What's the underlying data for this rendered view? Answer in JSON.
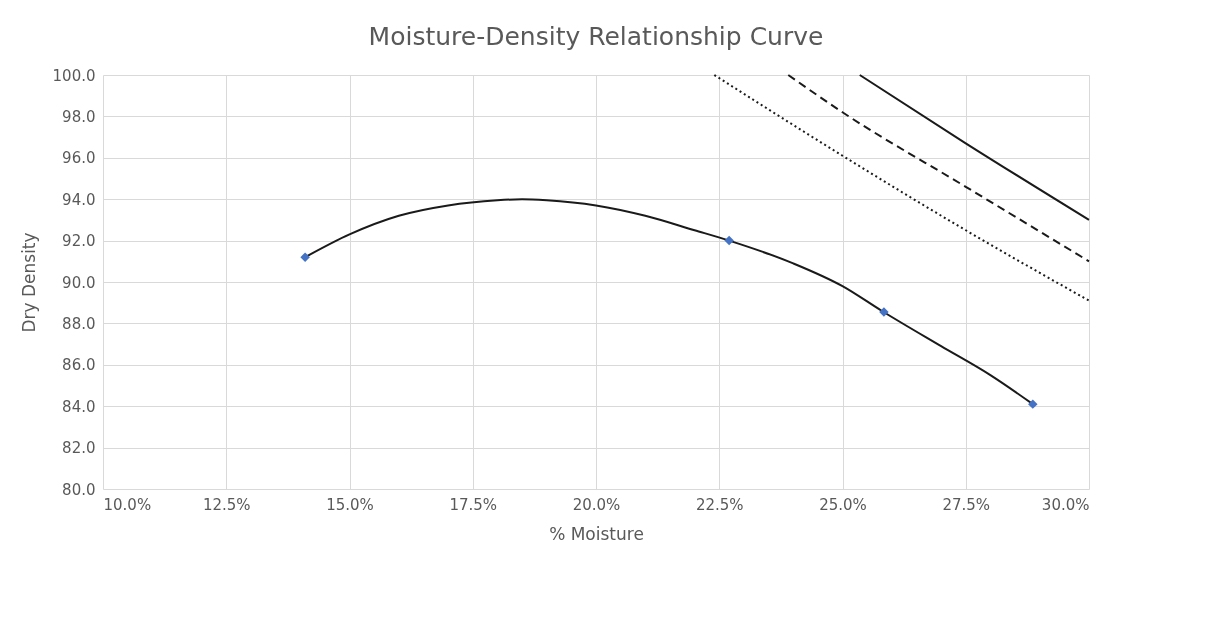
{
  "chart_data": {
    "type": "scatter",
    "title": "Moisture-Density Relationship Curve",
    "xlabel": "% Moisture",
    "ylabel": "Dry Density",
    "xlim": [
      10,
      30
    ],
    "ylim": [
      80,
      100
    ],
    "xticks": [
      {
        "value": 10,
        "label": "10.0%"
      },
      {
        "value": 12.5,
        "label": "12.5%"
      },
      {
        "value": 15,
        "label": "15.0%"
      },
      {
        "value": 17.5,
        "label": "17.5%"
      },
      {
        "value": 20,
        "label": "20.0%"
      },
      {
        "value": 22.5,
        "label": "22.5%"
      },
      {
        "value": 25,
        "label": "25.0%"
      },
      {
        "value": 27.5,
        "label": "27.5%"
      },
      {
        "value": 30,
        "label": "30.0%"
      }
    ],
    "yticks": [
      {
        "value": 80,
        "label": "80.0"
      },
      {
        "value": 82,
        "label": "82.0"
      },
      {
        "value": 84,
        "label": "84.0"
      },
      {
        "value": 86,
        "label": "86.0"
      },
      {
        "value": 88,
        "label": "88.0"
      },
      {
        "value": 90,
        "label": "90.0"
      },
      {
        "value": 92,
        "label": "92.0"
      },
      {
        "value": 94,
        "label": "94.0"
      },
      {
        "value": 96,
        "label": "96.0"
      },
      {
        "value": 98,
        "label": "98.0"
      },
      {
        "value": 100,
        "label": "100.0"
      }
    ],
    "grid": true,
    "series": [
      {
        "type": "line",
        "color": "#1a1a1a",
        "line_style": "solid",
        "marker": "none",
        "x": [
          14.1,
          15,
          16,
          17,
          18,
          18.5,
          19,
          20,
          21,
          22,
          22.7,
          24,
          25,
          25.8,
          27,
          28,
          28.86
        ],
        "values": [
          91.2,
          92.3,
          93.2,
          93.7,
          93.95,
          94.0,
          93.95,
          93.7,
          93.2,
          92.5,
          92.0,
          90.9,
          89.8,
          88.6,
          86.9,
          85.5,
          84.1
        ]
      },
      {
        "type": "line",
        "color": "#1a1a1a",
        "line_style": "solid",
        "marker": "none",
        "x": [
          25.35,
          27.5,
          30
        ],
        "values": [
          100,
          96.7,
          93.0
        ]
      },
      {
        "type": "line",
        "color": "#1a1a1a",
        "line_style": "dashed",
        "marker": "none",
        "x": [
          23.9,
          25,
          27.5,
          30
        ],
        "values": [
          100,
          98.2,
          94.6,
          91.0
        ]
      },
      {
        "type": "line",
        "color": "#1a1a1a",
        "line_style": "dotted",
        "marker": "none",
        "x": [
          22.4,
          25,
          27.5,
          30
        ],
        "values": [
          100,
          96.1,
          92.5,
          89.1
        ]
      },
      {
        "color": "#4472c4",
        "marker": "diamond",
        "x": [
          14.1,
          22.7,
          25.84,
          28.86
        ],
        "values": [
          91.2,
          92.0,
          88.55,
          84.1
        ]
      }
    ]
  }
}
